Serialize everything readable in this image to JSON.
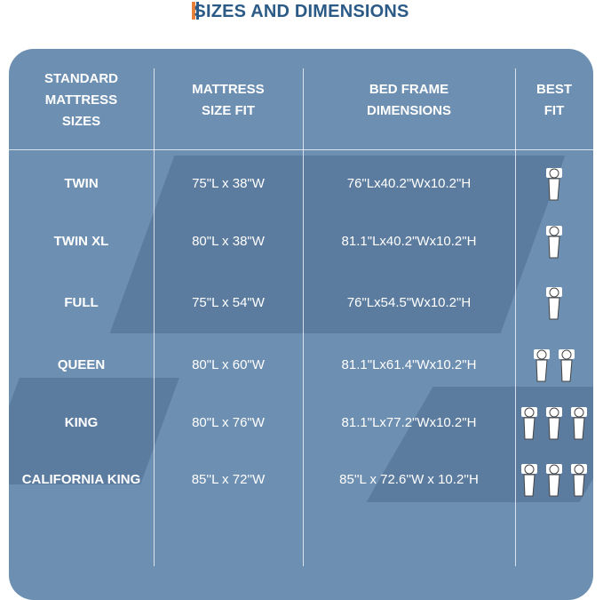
{
  "title": "SIZES AND DIMENSIONS",
  "table": {
    "header": [
      "STANDARD MATTRESS SIZES",
      "MATTRESS SIZE FIT",
      "BED FRAME DIMENSIONS",
      "BEST FIT"
    ],
    "rows": [
      [
        "TWIN",
        "75\"L x 38\"W",
        "76\"Lx40.2\"Wx10.2\"H"
      ],
      [
        "TWIN XL",
        "80\"L x 38\"W",
        "81.1\"Lx40.2\"Wx10.2\"H"
      ],
      [
        "FULL",
        "75\"L x 54\"W",
        "76\"Lx54.5\"Wx10.2\"H"
      ],
      [
        "QUEEN",
        "80\"L x 60\"W",
        "81.1\"Lx61.4\"Wx10.2\"H"
      ],
      [
        "KING",
        "80\"L x 76\"W",
        "81.1\"Lx77.2\"Wx10.2\"H"
      ],
      [
        "CALIFORNIA KING",
        "85''L x 72''W",
        "85''L x 72.6''W x 10.2''H"
      ]
    ]
  }
}
